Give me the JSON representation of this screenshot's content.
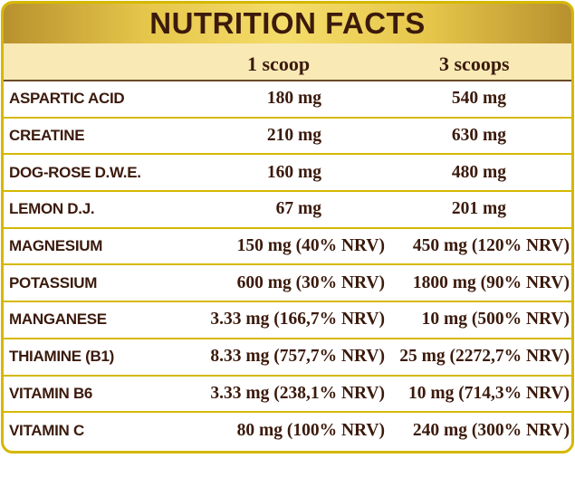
{
  "title": "NUTRITION FACTS",
  "columns": [
    "",
    "1 scoop",
    "3 scoops"
  ],
  "rows": [
    {
      "name": "ASPARTIC ACID",
      "one": "180 mg",
      "three": "540 mg"
    },
    {
      "name": "CREATINE",
      "one": "210 mg",
      "three": "630 mg"
    },
    {
      "name": "DOG-ROSE D.W.E.",
      "one": "160 mg",
      "three": "480 mg"
    },
    {
      "name": "LEMON D.J.",
      "one": "67 mg",
      "three": "201 mg"
    },
    {
      "name": "MAGNESIUM",
      "one": "150 mg (40% NRV)",
      "three": "450 mg (120% NRV)"
    },
    {
      "name": "POTASSIUM",
      "one": "600 mg (30% NRV)",
      "three": "1800 mg (90% NRV)"
    },
    {
      "name": "MANGANESE",
      "one": "3.33 mg (166,7% NRV)",
      "three": "10 mg (500% NRV)"
    },
    {
      "name": "THIAMINE (B1)",
      "one": "8.33 mg (757,7% NRV)",
      "three": "25 mg (2272,7% NRV)"
    },
    {
      "name": "VITAMIN B6",
      "one": "3.33 mg (238,1% NRV)",
      "three": "10 mg (714,3% NRV)"
    },
    {
      "name": "VITAMIN C",
      "one": "80 mg (100% NRV)",
      "three": "240 mg (300% NRV)"
    }
  ],
  "colors": {
    "gold": "#d5b800",
    "cream": "#f8e9b5",
    "text": "#3b1a0c"
  }
}
